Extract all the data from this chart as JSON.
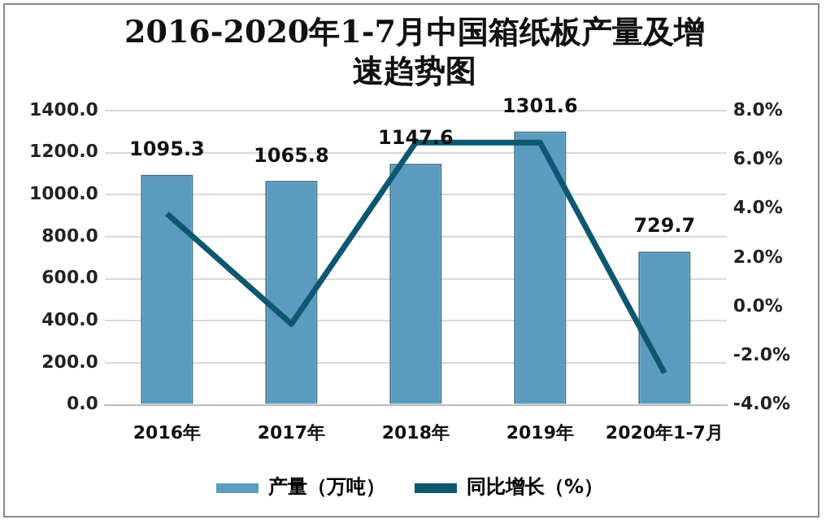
{
  "chart_data": {
    "type": "bar",
    "title": "2016-2020年1-7月中国箱纸板产量及增速趋势图",
    "categories": [
      "2016年",
      "2017年",
      "2018年",
      "2019年",
      "2020年1-7月"
    ],
    "series": [
      {
        "name": "产量（万吨）",
        "color": "#5b9bbf",
        "values": [
          1095.3,
          1065.8,
          1147.6,
          1301.6,
          729.7
        ]
      },
      {
        "name": "同比增长（%）",
        "type": "line",
        "axis": "y2",
        "color": "#0e5770",
        "values": [
          3.8,
          -0.7,
          6.7,
          6.7,
          -2.7
        ]
      }
    ],
    "ylim": [
      0,
      1400
    ],
    "yticks": [
      {
        "value": 0,
        "label": "0.0"
      },
      {
        "value": 200,
        "label": "200.0"
      },
      {
        "value": 400,
        "label": "400.0"
      },
      {
        "value": 600,
        "label": "600.0"
      },
      {
        "value": 800,
        "label": "800.0"
      },
      {
        "value": 1000,
        "label": "1000.0"
      },
      {
        "value": 1200,
        "label": "1200.0"
      },
      {
        "value": 1400,
        "label": "1400.0"
      }
    ],
    "y2lim": [
      -4,
      8
    ],
    "y2ticks": [
      {
        "value": -4,
        "label": "-4.0%"
      },
      {
        "value": -2,
        "label": "-2.0%"
      },
      {
        "value": 0,
        "label": "0.0%"
      },
      {
        "value": 2,
        "label": "2.0%"
      },
      {
        "value": 4,
        "label": "4.0%"
      },
      {
        "value": 6,
        "label": "6.0%"
      },
      {
        "value": 8,
        "label": "8.0%"
      }
    ],
    "grid": "y",
    "legend": "bottom",
    "marker": "none",
    "value_labels": [
      "1095.3",
      "1065.8",
      "1147.6",
      "1301.6",
      "729.7"
    ]
  }
}
